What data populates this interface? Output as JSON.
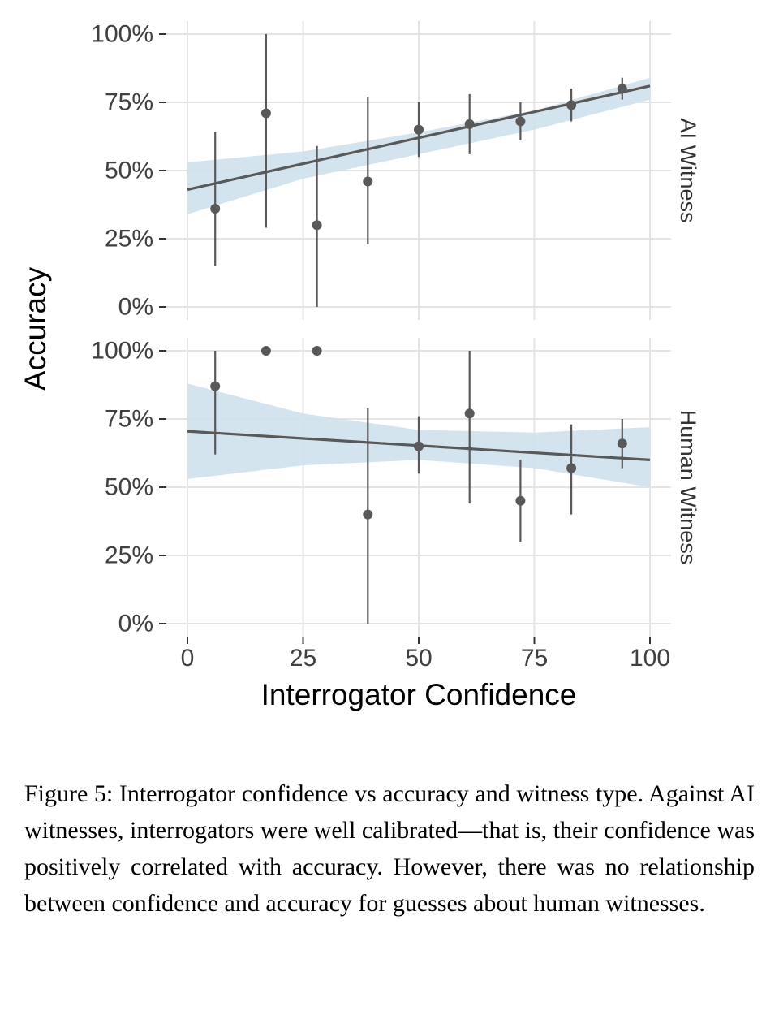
{
  "figure": {
    "caption": "Figure 5: Interrogator confidence vs accuracy and witness type.  Against AI witnesses, interrogators were well calibrated—that is, their confidence was positively correlated with accuracy. However, there was no relationship between confidence and accuracy for guesses about human witnesses."
  },
  "chart_data": {
    "type": "scatter",
    "title": "",
    "xlabel": "Interrogator Confidence",
    "ylabel": "Accuracy",
    "xlim": [
      0,
      100
    ],
    "ylim": [
      0,
      100
    ],
    "grid": true,
    "legend": "none",
    "x_ticks": [
      0,
      25,
      50,
      75,
      100
    ],
    "y_ticks": [
      {
        "value": 0,
        "label": "0%"
      },
      {
        "value": 25,
        "label": "25%"
      },
      {
        "value": 50,
        "label": "50%"
      },
      {
        "value": 75,
        "label": "75%"
      },
      {
        "value": 100,
        "label": "100%"
      }
    ],
    "panels": [
      {
        "label": "AI Witness",
        "points": [
          {
            "x": 6,
            "y": 36,
            "lo": 15,
            "hi": 64
          },
          {
            "x": 17,
            "y": 71,
            "lo": 29,
            "hi": 100
          },
          {
            "x": 28,
            "y": 30,
            "lo": 0,
            "hi": 59
          },
          {
            "x": 39,
            "y": 46,
            "lo": 23,
            "hi": 77
          },
          {
            "x": 50,
            "y": 65,
            "lo": 55,
            "hi": 75
          },
          {
            "x": 61,
            "y": 67,
            "lo": 56,
            "hi": 78
          },
          {
            "x": 72,
            "y": 68,
            "lo": 61,
            "hi": 75
          },
          {
            "x": 83,
            "y": 74,
            "lo": 68,
            "hi": 80
          },
          {
            "x": 94,
            "y": 80,
            "lo": 76,
            "hi": 84
          }
        ],
        "regression": {
          "x": [
            0,
            100
          ],
          "y": [
            43,
            81
          ]
        },
        "band": [
          {
            "x": 0,
            "lo": 34,
            "hi": 53
          },
          {
            "x": 25,
            "lo": 47,
            "hi": 57
          },
          {
            "x": 50,
            "lo": 56,
            "hi": 64
          },
          {
            "x": 75,
            "lo": 65,
            "hi": 72
          },
          {
            "x": 100,
            "lo": 76,
            "hi": 84
          }
        ]
      },
      {
        "label": "Human Witness",
        "points": [
          {
            "x": 6,
            "y": 87,
            "lo": 62,
            "hi": 100
          },
          {
            "x": 17,
            "y": 100,
            "lo": 100,
            "hi": 100
          },
          {
            "x": 28,
            "y": 100,
            "lo": 100,
            "hi": 100
          },
          {
            "x": 39,
            "y": 40,
            "lo": 0,
            "hi": 79
          },
          {
            "x": 50,
            "y": 65,
            "lo": 55,
            "hi": 76
          },
          {
            "x": 61,
            "y": 77,
            "lo": 44,
            "hi": 100
          },
          {
            "x": 72,
            "y": 45,
            "lo": 30,
            "hi": 60
          },
          {
            "x": 83,
            "y": 57,
            "lo": 40,
            "hi": 73
          },
          {
            "x": 94,
            "y": 66,
            "lo": 57,
            "hi": 75
          }
        ],
        "regression": {
          "x": [
            0,
            100
          ],
          "y": [
            70.5,
            60
          ]
        },
        "band": [
          {
            "x": 0,
            "lo": 53,
            "hi": 88
          },
          {
            "x": 25,
            "lo": 58,
            "hi": 77
          },
          {
            "x": 50,
            "lo": 60,
            "hi": 71
          },
          {
            "x": 75,
            "lo": 57,
            "hi": 70
          },
          {
            "x": 100,
            "lo": 50,
            "hi": 72
          }
        ]
      }
    ],
    "colors": {
      "point": "#595959",
      "line": "#595959",
      "band": "#cfe1ed",
      "grid": "#e4e4e4",
      "tick": "#333333",
      "tick_label": "#404040",
      "axis_title": "#000000",
      "facet_label": "#333333"
    }
  }
}
